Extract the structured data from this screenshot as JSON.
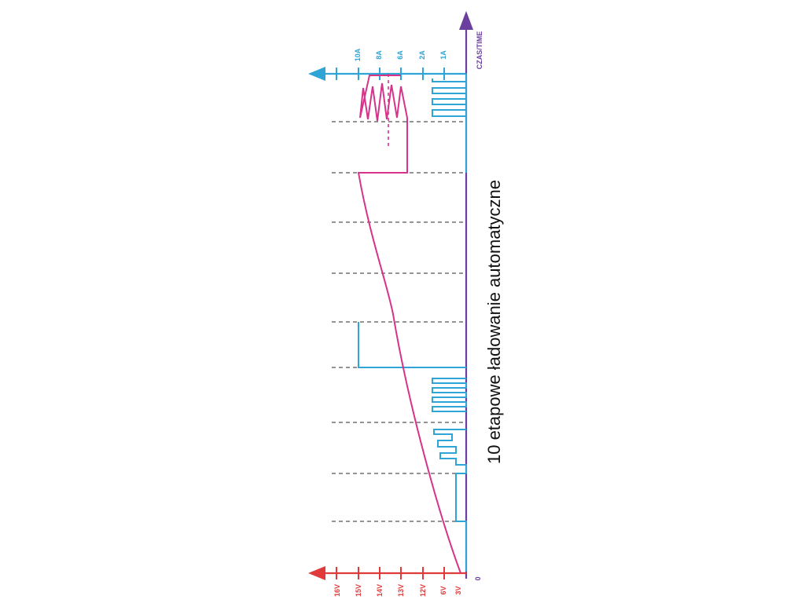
{
  "diagram": {
    "title": "10 etapowe ładowanie automatyczne",
    "time_axis_label": "CZAS/TIME",
    "origin_label": "0",
    "current_axis_labels": [
      "10A",
      "8A",
      "6A",
      "2A",
      "1A"
    ],
    "voltage_axis_labels": [
      "16V",
      "15V",
      "14V",
      "13V",
      "12V",
      "6V",
      "3V"
    ],
    "stage_count": 10,
    "colors": {
      "voltage": "#d6338a",
      "current": "#2fa4d6",
      "time": "#6b3fa0",
      "voltage_axis": "#e03a3a",
      "grid": "#555555"
    }
  }
}
